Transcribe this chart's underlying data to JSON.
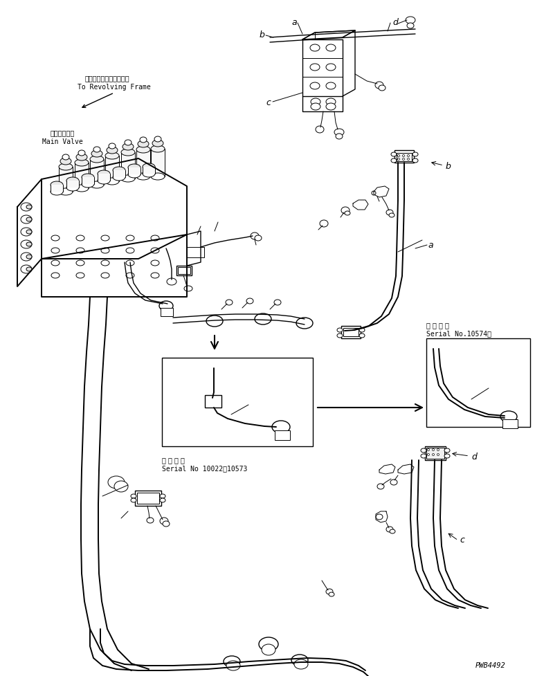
{
  "background_color": "#ffffff",
  "line_color": "#000000",
  "label_a_top": "a",
  "label_b_top": "b",
  "label_c_top": "c",
  "label_d_top": "d",
  "label_a_mid": "a",
  "label_b_mid": "b",
  "label_c_bot": "c",
  "label_d_bot": "d",
  "main_valve_jp": "メインバルブ",
  "main_valve_en": "Main Valve",
  "revolving_jp": "レボルビングフレームヘ",
  "revolving_en": "To Revolving Frame",
  "serial_box1_jp": "適 用 号 機",
  "serial_box1_en": "Serial No 10022～10573",
  "serial_box2_jp": "適 用 号 機",
  "serial_box2_en": "Serial No.10574～",
  "part_code": "PWB4492",
  "fig_width": 7.73,
  "fig_height": 9.78,
  "dpi": 100
}
